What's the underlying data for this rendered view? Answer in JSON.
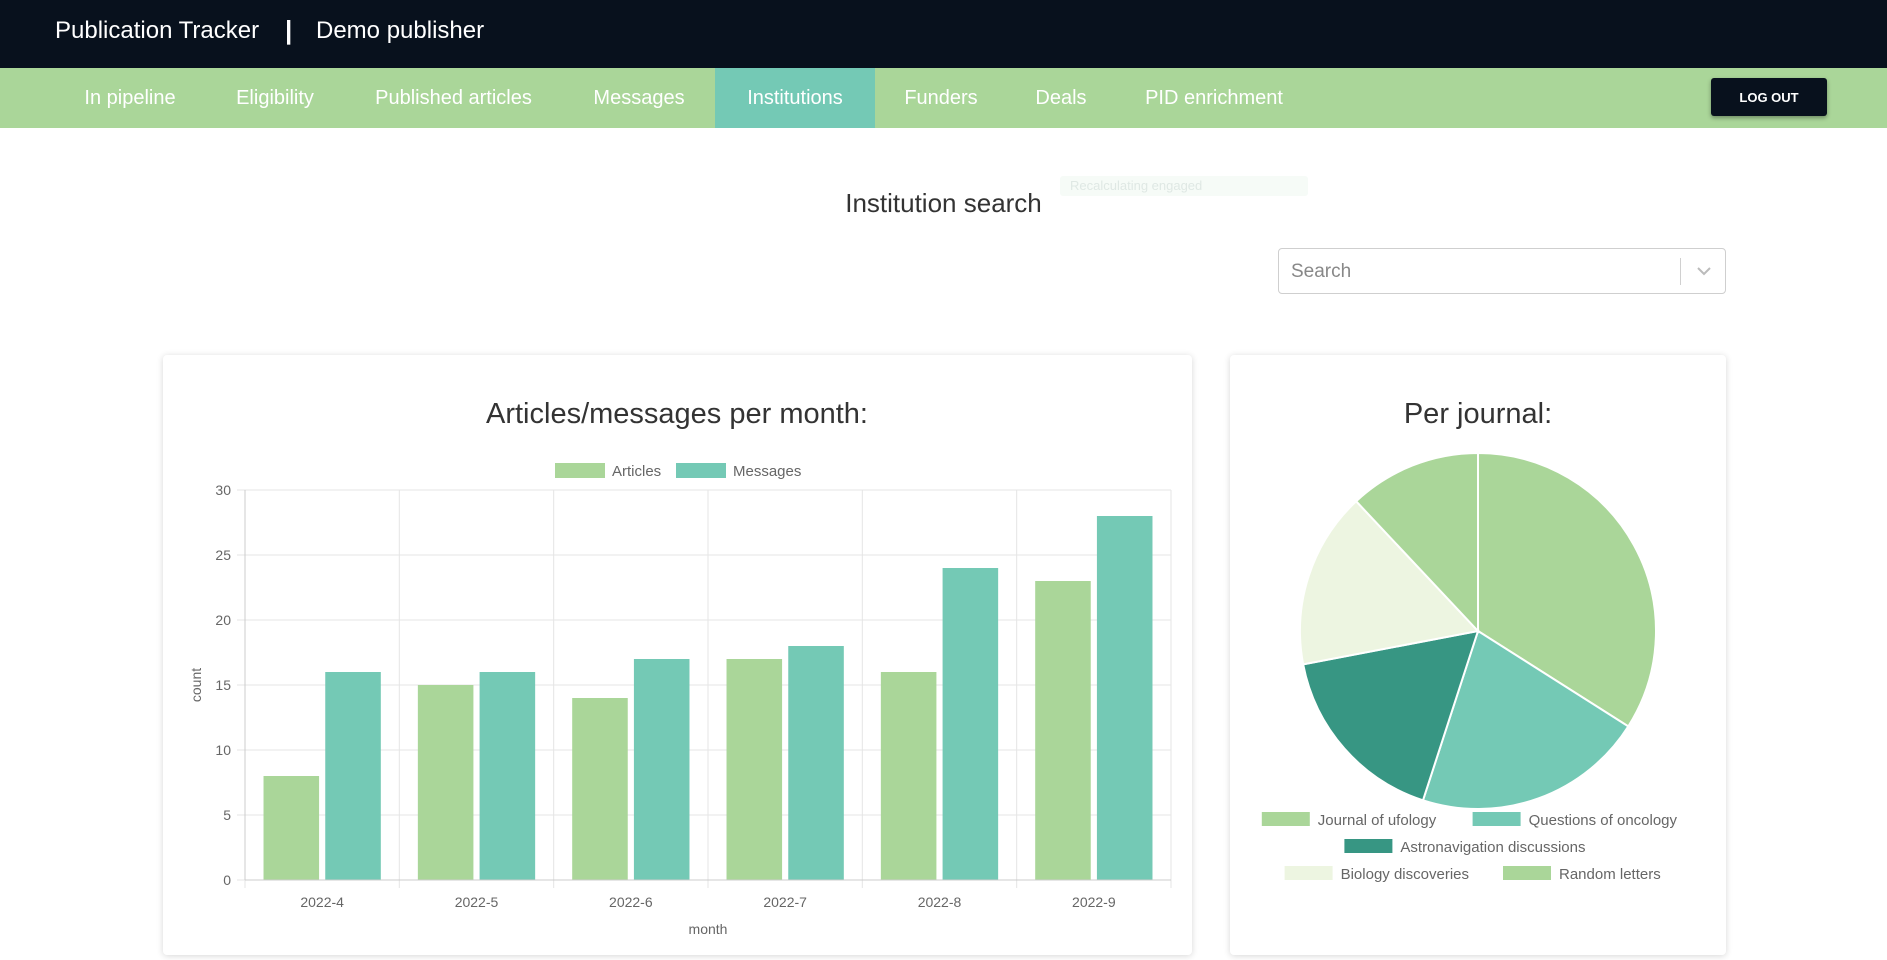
{
  "header": {
    "app_title": "Publication Tracker",
    "separator": "|",
    "publisher": "Demo publisher"
  },
  "nav": {
    "items": [
      {
        "label": "In pipeline",
        "active": false
      },
      {
        "label": "Eligibility",
        "active": false
      },
      {
        "label": "Published articles",
        "active": false
      },
      {
        "label": "Messages",
        "active": false
      },
      {
        "label": "Institutions",
        "active": true
      },
      {
        "label": "Funders",
        "active": false
      },
      {
        "label": "Deals",
        "active": false
      },
      {
        "label": "PID enrichment",
        "active": false
      }
    ],
    "logout_label": "LOG OUT"
  },
  "page": {
    "title": "Institution search",
    "search_placeholder": "Search",
    "ghost_text": "Recalculating engaged"
  },
  "colors": {
    "header_bg": "#08111d",
    "nav_bg": "#aad699",
    "nav_active": "#74c9b5",
    "green": "#aad699",
    "teal": "#74c9b5",
    "dark_teal": "#379683",
    "pale": "#edf5e1"
  },
  "icons": {
    "dropdown": "chevron-down-icon"
  },
  "chart_data": [
    {
      "type": "bar",
      "title": "Articles/messages per month:",
      "xlabel": "month",
      "ylabel": "count",
      "ylim": [
        0,
        30
      ],
      "yticks": [
        0,
        5,
        10,
        15,
        20,
        25,
        30
      ],
      "categories": [
        "2022-4",
        "2022-5",
        "2022-6",
        "2022-7",
        "2022-8",
        "2022-9"
      ],
      "series": [
        {
          "name": "Articles",
          "color": "#aad699",
          "values": [
            8,
            15,
            14,
            17,
            16,
            23
          ]
        },
        {
          "name": "Messages",
          "color": "#74c9b5",
          "values": [
            16,
            16,
            17,
            18,
            24,
            28
          ]
        }
      ],
      "legend": "top",
      "grid": true
    },
    {
      "type": "pie",
      "title": "Per journal:",
      "slices": [
        {
          "label": "Journal of ufology",
          "value": 34,
          "color": "#aad699"
        },
        {
          "label": "Questions of oncology",
          "value": 21,
          "color": "#74c9b5"
        },
        {
          "label": "Astronavigation discussions",
          "value": 17,
          "color": "#379683"
        },
        {
          "label": "Biology discoveries",
          "value": 16,
          "color": "#edf5e1"
        },
        {
          "label": "Random letters",
          "value": 12,
          "color": "#aad699"
        }
      ],
      "legend": "bottom"
    }
  ]
}
